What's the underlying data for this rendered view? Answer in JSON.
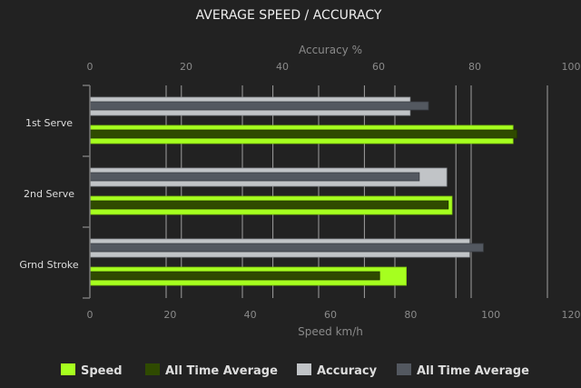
{
  "chart_data": {
    "type": "bar",
    "orientation": "horizontal",
    "title": "AVERAGE SPEED / ACCURACY",
    "categories": [
      "1st Serve",
      "2nd Serve",
      "Grnd Stroke"
    ],
    "top_axis": {
      "label": "Accuracy %",
      "range": [
        0,
        100
      ],
      "ticks": [
        0,
        20,
        40,
        60,
        80,
        100
      ]
    },
    "bottom_axis": {
      "label": "Speed km/h",
      "range": [
        0,
        120
      ],
      "ticks": [
        0,
        20,
        40,
        60,
        80,
        100,
        120
      ]
    },
    "grid": true,
    "legend_position": "bottom",
    "series": [
      {
        "name": "Speed",
        "axis": "bottom",
        "color": "#a6ff1f",
        "values": [
          111,
          95,
          83
        ]
      },
      {
        "name": "All Time Average",
        "axis": "bottom",
        "color": "#2f4a00",
        "values": [
          112,
          94,
          76
        ]
      },
      {
        "name": "Accuracy",
        "axis": "top",
        "color": "#c1c4c7",
        "values": [
          70,
          78,
          83
        ]
      },
      {
        "name": "All Time Average",
        "axis": "top",
        "color": "#535860",
        "values": [
          74,
          72,
          86
        ]
      }
    ]
  }
}
